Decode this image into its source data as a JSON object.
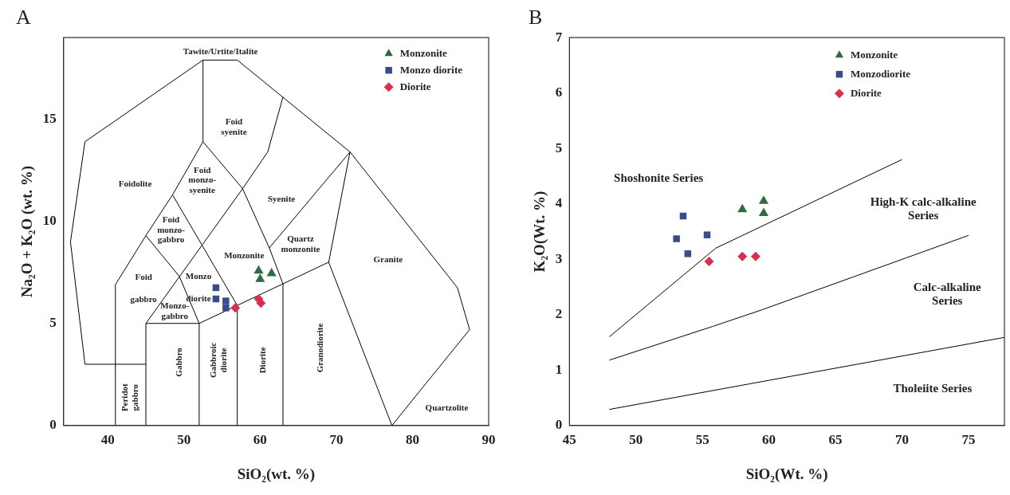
{
  "chart_data": [
    {
      "type": "scatter",
      "title": "A",
      "xlabel": "SiO₂(wt. %)",
      "ylabel": "Na₂O + K₂O (wt. %)",
      "xlim": [
        34.2,
        90
      ],
      "xticks": [
        40,
        50,
        60,
        70,
        80,
        90
      ],
      "ylim": [
        0,
        19
      ],
      "yticks": [
        0,
        5,
        10,
        15
      ],
      "grid": false,
      "legend": "top right",
      "series": [
        {
          "name": "Monzonite",
          "color": "#2e6b3e",
          "marker": "triangle",
          "x": [
            59.8,
            60.0,
            61.5
          ],
          "values": [
            7.58,
            7.17,
            7.45
          ]
        },
        {
          "name": "Monzo diorite",
          "color": "#3a4a8a",
          "marker": "square",
          "x": [
            54.2,
            54.2,
            55.5,
            55.5
          ],
          "values": [
            6.75,
            6.2,
            6.1,
            5.76
          ]
        },
        {
          "name": "Diorite",
          "color": "#d9304f",
          "marker": "diamond",
          "x": [
            56.75,
            59.8,
            60.1
          ],
          "values": [
            5.76,
            6.2,
            6.0
          ]
        },
        {
          "type": "line",
          "color": "#000000",
          "marker": "none",
          "x": [
            45,
            37,
            35.1,
            37,
            52.5,
            57,
            71.8,
            85.9,
            87.5,
            77.3,
            69
          ],
          "values": [
            3,
            3,
            9,
            13.9,
            17.9,
            17.9,
            13.4,
            6.75,
            4.7,
            0,
            8
          ]
        },
        {
          "type": "line",
          "color": "#000000",
          "marker": "none",
          "x": [
            45,
            45,
            57.7,
            61,
            63
          ],
          "values": [
            0,
            5,
            11.6,
            13.4,
            16.1
          ]
        },
        {
          "type": "line",
          "color": "#000000",
          "marker": "none",
          "x": [
            41,
            41,
            45,
            48.5,
            52.5,
            52.5
          ],
          "values": [
            0,
            6.9,
            9.3,
            11.3,
            13.9,
            17.9
          ]
        },
        {
          "type": "line",
          "color": "#000000",
          "marker": "none",
          "x": [
            45,
            52,
            69,
            71.8,
            61.2
          ],
          "values": [
            5,
            5,
            8,
            13.4,
            8.7
          ]
        },
        {
          "type": "line",
          "color": "#000000",
          "marker": "none",
          "x": [
            52,
            52,
            49.4,
            45
          ],
          "values": [
            0,
            5,
            7.3,
            9.3
          ]
        },
        {
          "type": "line",
          "color": "#000000",
          "marker": "none",
          "x": [
            57,
            57,
            48.5
          ],
          "values": [
            0,
            5.88,
            11.3
          ]
        },
        {
          "type": "line",
          "color": "#000000",
          "marker": "none",
          "x": [
            63,
            63,
            61.2,
            57.7,
            52.5
          ],
          "values": [
            0,
            6.94,
            8.7,
            11.6,
            13.9
          ]
        }
      ],
      "annotations": [
        "Tawite/Urtite/Italite",
        "Foid\nsyenite",
        "Foidolite",
        "Foid\nmonzo-\nsyenite",
        "Syenite",
        "Foid\nmonzo-\ngabbro",
        "Quartz\nmonzonite",
        "Monzonite",
        "Granite",
        "Foid\ngabbro",
        "Monzo\ndiorite",
        "Monzo-\ngabbro",
        "Gabbro",
        "Gabbroic\ndiorite",
        "Diorite",
        "Granodiorite",
        "Peridot\ngabbro",
        "Quartzolite"
      ]
    },
    {
      "type": "scatter",
      "title": "B",
      "xlabel": "SiO₂(Wt. %)",
      "ylabel": "K₂O(Wt. %)",
      "xlim": [
        45,
        77.7
      ],
      "xticks": [
        45,
        50,
        55,
        60,
        65,
        70,
        75
      ],
      "ylim": [
        0,
        7
      ],
      "yticks": [
        0,
        1,
        2,
        3,
        4,
        5,
        6,
        7
      ],
      "grid": false,
      "legend": "top right",
      "series": [
        {
          "name": "Monzonite",
          "color": "#2e6b3e",
          "marker": "triangle",
          "x": [
            58.0,
            59.6,
            59.6
          ],
          "values": [
            3.9,
            4.05,
            3.83
          ]
        },
        {
          "name": "Monzodiorite",
          "color": "#3a4a8a",
          "marker": "square",
          "x": [
            53.55,
            53.05,
            53.9,
            55.35
          ],
          "values": [
            3.78,
            3.37,
            3.1,
            3.44
          ]
        },
        {
          "name": "Diorite",
          "color": "#d9304f",
          "marker": "diamond",
          "x": [
            55.5,
            58.0,
            59.0
          ],
          "values": [
            2.96,
            3.05,
            3.05
          ]
        },
        {
          "type": "line",
          "color": "#000000",
          "marker": "none",
          "x": [
            48,
            56,
            70
          ],
          "values": [
            1.6,
            3.2,
            4.8
          ]
        },
        {
          "type": "line",
          "color": "#000000",
          "marker": "none",
          "x": [
            48,
            55.8,
            59.5,
            75
          ],
          "values": [
            1.18,
            1.79,
            2.09,
            3.43
          ]
        },
        {
          "type": "line",
          "color": "#000000",
          "marker": "none",
          "x": [
            48,
            77.7
          ],
          "values": [
            0.29,
            1.59
          ]
        }
      ],
      "annotations": [
        "Shoshonite Series",
        "High-K calc-alkaline\nSeries",
        "Calc-alkaline\nSeries",
        "Tholeiite Series"
      ]
    }
  ]
}
